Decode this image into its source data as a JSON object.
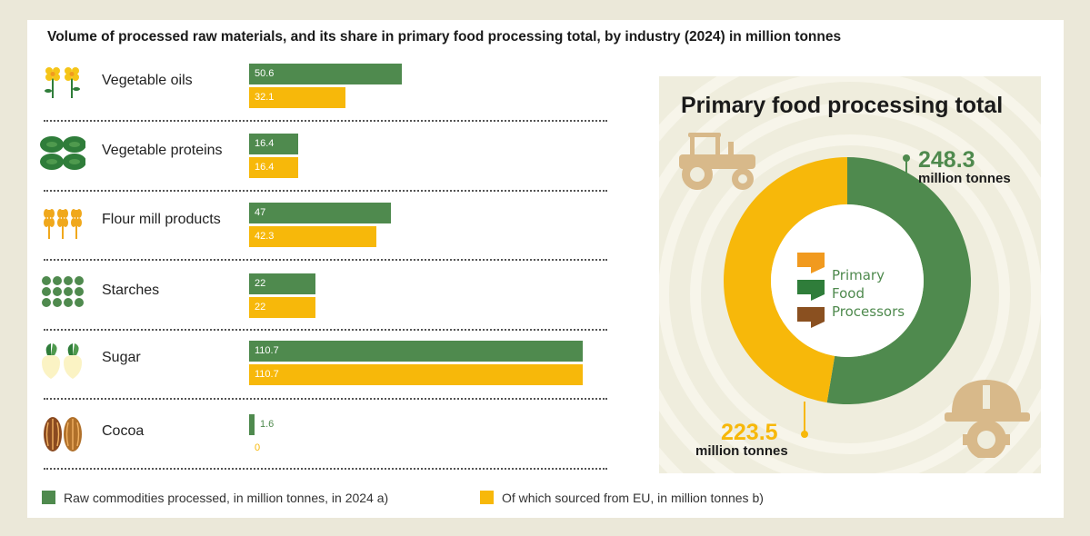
{
  "title": "Volume of processed raw materials, and its share in primary food processing total, by industry (2024) in million tonnes",
  "colors": {
    "green": "#4f8a4e",
    "yellow": "#f7b80a",
    "panel_bg": "#efeddd"
  },
  "chart_data": [
    {
      "type": "bar",
      "orientation": "horizontal",
      "categories": [
        "Vegetable oils",
        "Vegetable proteins",
        "Flour mill products",
        "Starches",
        "Sugar",
        "Cocoa"
      ],
      "icons": [
        "rapeseed-flower-icon",
        "soybean-icon",
        "wheat-icon",
        "starch-grains-icon",
        "sugar-beet-icon",
        "cocoa-pod-icon"
      ],
      "series": [
        {
          "name": "Raw commodities processed, in million tonnes, in 2024 a)",
          "color": "#4f8a4e",
          "values": [
            50.6,
            16.4,
            47,
            22,
            110.7,
            1.6
          ],
          "labels": [
            "50.6",
            "16.4",
            "47",
            "22",
            "110.7",
            "1.6"
          ]
        },
        {
          "name": "Of which sourced from EU, in million tonnes b)",
          "color": "#f7b80a",
          "values": [
            32.1,
            16.4,
            42.3,
            22,
            110.7,
            0
          ],
          "labels": [
            "32.1",
            "16.4",
            "42.3",
            "22",
            "110.7",
            "0"
          ]
        }
      ],
      "legend_position": "bottom"
    },
    {
      "type": "pie",
      "donut": true,
      "title": "Primary food processing total",
      "slices": [
        {
          "value": 248.3,
          "label": "248.3",
          "unit": "million tonnes",
          "color": "#4f8a4e"
        },
        {
          "value": 223.5,
          "label": "223.5",
          "unit": "million tonnes",
          "color": "#f7b80a"
        }
      ],
      "center_text": [
        "Primary",
        "Food",
        "Processors"
      ]
    }
  ]
}
